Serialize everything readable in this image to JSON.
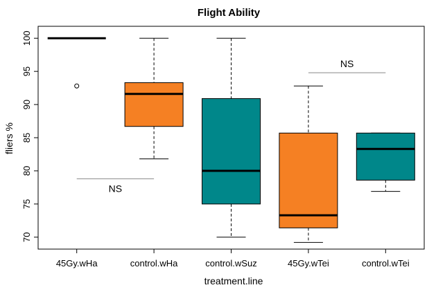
{
  "chart_data": {
    "type": "box",
    "title": "Flight Ability",
    "xlabel": "treatment.line",
    "ylabel": "fliers %",
    "ylim": [
      68.2,
      101.8
    ],
    "yticks": [
      70,
      75,
      80,
      85,
      90,
      95,
      100
    ],
    "categories": [
      "45Gy.wHa",
      "control.wHa",
      "control.wSuz",
      "45Gy.wTei",
      "control.wTei"
    ],
    "boxes": [
      {
        "category": "45Gy.wHa",
        "min": 100,
        "q1": 100,
        "median": 100,
        "q3": 100,
        "max": 100,
        "outliers": [
          92.8
        ],
        "color": "#000000"
      },
      {
        "category": "control.wHa",
        "min": 81.8,
        "q1": 86.7,
        "median": 91.6,
        "q3": 93.3,
        "max": 100,
        "outliers": [],
        "color": "#f58023"
      },
      {
        "category": "control.wSuz",
        "min": 70.0,
        "q1": 75.0,
        "median": 80.0,
        "q3": 90.9,
        "max": 100,
        "outliers": [],
        "color": "#00878a"
      },
      {
        "category": "45Gy.wTei",
        "min": 69.2,
        "q1": 71.4,
        "median": 73.3,
        "q3": 85.7,
        "max": 92.8,
        "outliers": [],
        "color": "#f58023"
      },
      {
        "category": "control.wTei",
        "min": 76.9,
        "q1": 78.6,
        "median": 83.3,
        "q3": 85.7,
        "max": 85.7,
        "outliers": [],
        "color": "#00878a"
      }
    ],
    "annotations": [
      {
        "text": "NS",
        "line_from": "45Gy.wHa",
        "line_to": "control.wHa",
        "y": 78.8,
        "text_position": "below"
      },
      {
        "text": "NS",
        "line_from": "45Gy.wTei",
        "line_to": "control.wTei",
        "y": 94.8,
        "text_position": "above"
      }
    ],
    "grid": false,
    "legend": "none"
  }
}
